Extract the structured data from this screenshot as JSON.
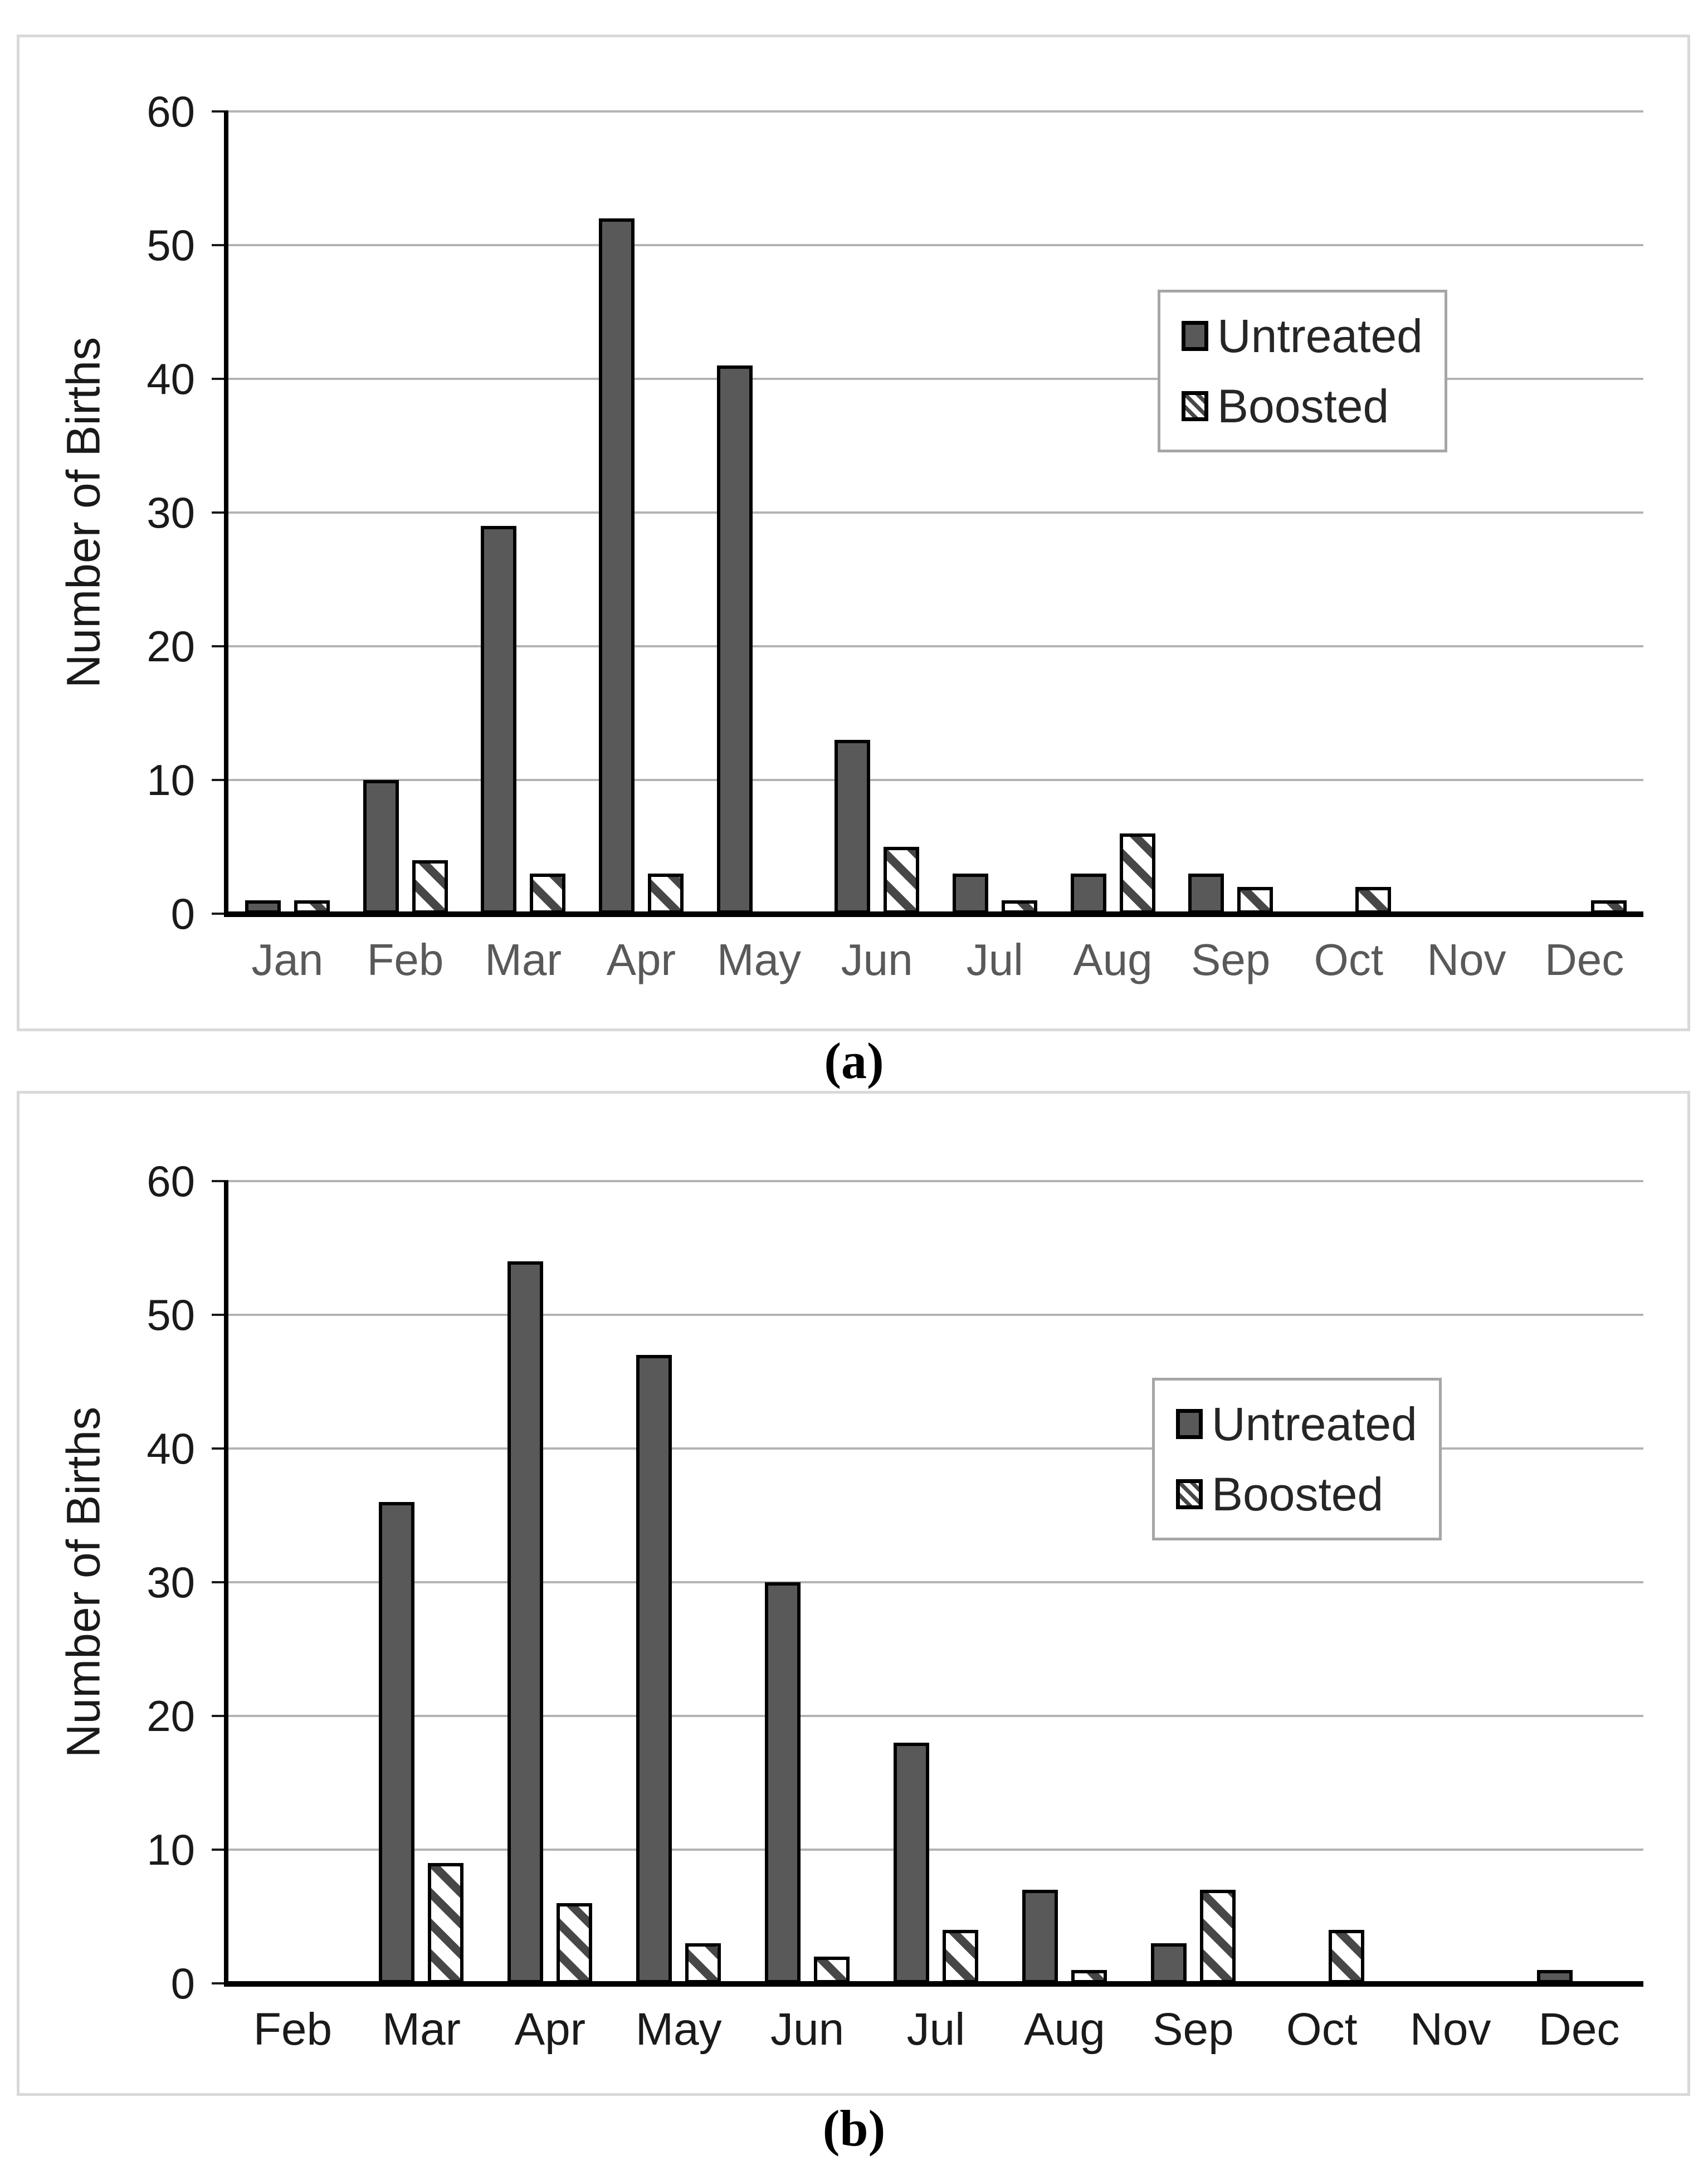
{
  "figure": {
    "background": "#ffffff",
    "panel_border_color": "#d9d9d9",
    "captions": {
      "a": "(a)",
      "b": "(b)"
    }
  },
  "colors": {
    "untreated_fill": "#595959",
    "bar_border": "#000000",
    "hatch_stripe": "#474747",
    "gridline": "#b3b3b3",
    "legend_border": "#a6a6a6",
    "axis_text": "#1a1a1a",
    "month_text_chart_a": "#595959",
    "month_text_chart_b": "#1a1a1a"
  },
  "chart_data": [
    {
      "id": "a",
      "type": "bar",
      "caption": "(a)",
      "title": "",
      "xlabel": "",
      "ylabel": "Number of Births",
      "ylim": [
        0,
        60
      ],
      "ytick_step": 10,
      "yticks": [
        "0",
        "10",
        "20",
        "30",
        "40",
        "50",
        "60"
      ],
      "grid": true,
      "legend_position": "upper-right",
      "categories": [
        "Jan",
        "Feb",
        "Mar",
        "Apr",
        "May",
        "Jun",
        "Jul",
        "Aug",
        "Sep",
        "Oct",
        "Nov",
        "Dec"
      ],
      "series": [
        {
          "name": "Untreated",
          "style": "solid",
          "values": [
            1,
            10,
            29,
            52,
            41,
            13,
            3,
            3,
            3,
            0,
            0,
            0
          ]
        },
        {
          "name": "Boosted",
          "style": "hatched",
          "values": [
            1,
            4,
            3,
            3,
            0,
            5,
            1,
            6,
            2,
            2,
            0,
            1
          ]
        }
      ]
    },
    {
      "id": "b",
      "type": "bar",
      "caption": "(b)",
      "title": "",
      "xlabel": "",
      "ylabel": "Number of Births",
      "ylim": [
        0,
        60
      ],
      "ytick_step": 10,
      "yticks": [
        "0",
        "10",
        "20",
        "30",
        "40",
        "50",
        "60"
      ],
      "grid": true,
      "legend_position": "upper-right",
      "categories": [
        "Feb",
        "Mar",
        "Apr",
        "May",
        "Jun",
        "Jul",
        "Aug",
        "Sep",
        "Oct",
        "Nov",
        "Dec"
      ],
      "series": [
        {
          "name": "Untreated",
          "style": "solid",
          "values": [
            0,
            36,
            54,
            47,
            30,
            18,
            7,
            3,
            0,
            0,
            1
          ]
        },
        {
          "name": "Boosted",
          "style": "hatched",
          "values": [
            0,
            9,
            6,
            3,
            2,
            4,
            1,
            7,
            4,
            0,
            0
          ]
        }
      ]
    }
  ]
}
